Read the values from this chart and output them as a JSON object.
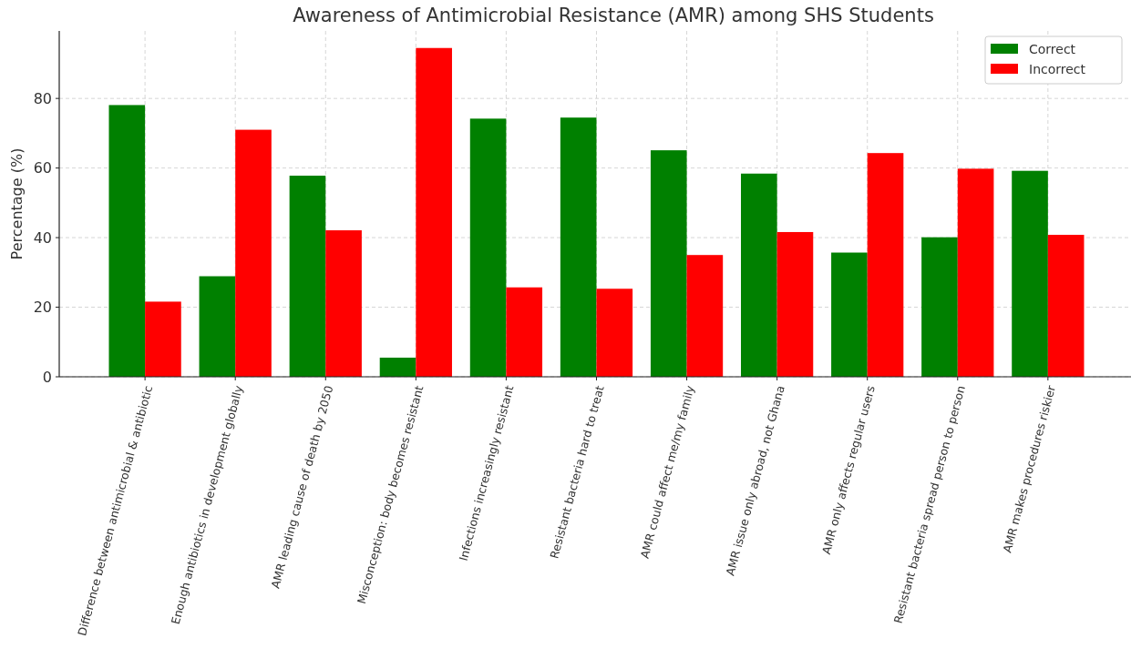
{
  "chart_data": {
    "type": "bar",
    "title": "Awareness of Antimicrobial Resistance (AMR) among SHS Students",
    "ylabel": "Percentage (%)",
    "categories": [
      "Difference between antimicrobial & antibiotic",
      "Enough antibiotics in development globally",
      "AMR leading cause of death by 2050",
      "Misconception: body becomes resistant",
      "Infections increasingly resistant",
      "Resistant bacteria hard to treat",
      "AMR could affect me/my family",
      "AMR issue only abroad, not Ghana",
      "AMR only affects regular users",
      "Resistant bacteria spread person to person",
      "AMR makes procedures riskier"
    ],
    "series": [
      {
        "name": "Correct",
        "color": "#008000",
        "values": [
          78.1,
          28.9,
          57.8,
          5.5,
          74.2,
          74.5,
          65.1,
          58.4,
          35.7,
          40.1,
          59.2
        ]
      },
      {
        "name": "Incorrect",
        "color": "#ff0000",
        "values": [
          21.6,
          71.0,
          42.1,
          94.5,
          25.7,
          25.3,
          35.0,
          41.6,
          64.3,
          59.8,
          40.8
        ]
      }
    ],
    "ylim": [
      0,
      99.4
    ],
    "yticks": [
      0,
      20,
      40,
      60,
      80
    ],
    "grid": true,
    "legend": "top right"
  }
}
